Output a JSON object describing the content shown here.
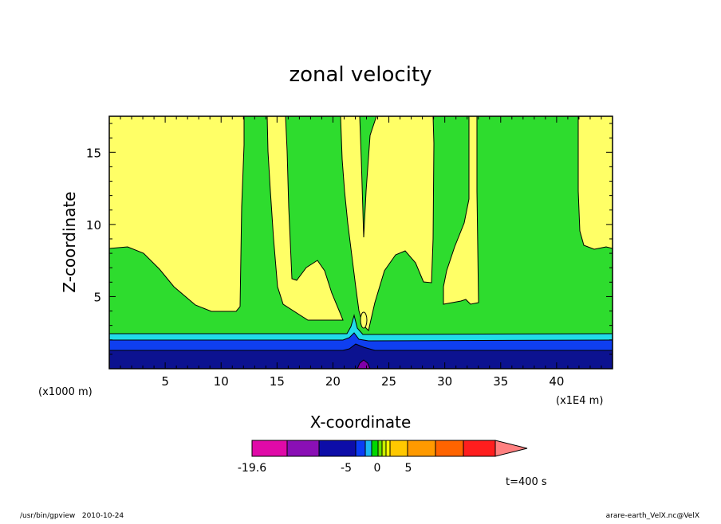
{
  "chart_data": {
    "type": "contour",
    "title": "zonal velocity",
    "xlabel": "X-coordinate",
    "ylabel": "Z-coordinate",
    "x_units": "(x1000 m)",
    "x_scale_note": "(x1E4 m)",
    "x_range": [
      0,
      45
    ],
    "y_range": [
      0,
      17.5
    ],
    "x_ticks": [
      5,
      10,
      15,
      20,
      25,
      30,
      35,
      40
    ],
    "y_ticks": [
      5,
      10,
      15
    ],
    "time_label": "t=400 s",
    "colorbar": {
      "labels": [
        "-19.6",
        "-5",
        "0",
        "5"
      ],
      "colors": [
        "#e00aa8",
        "#8a0fb5",
        "#0d0da8",
        "#0a3cf5",
        "#1ab4f5",
        "#00d800",
        "#66e000",
        "#c8f000",
        "#ffff00",
        "#ffc800",
        "#ff9a00",
        "#ff6400",
        "#ff1e1e",
        "#ff8080"
      ]
    },
    "colors": {
      "yellow": "#ffff66",
      "green": "#2edc2e",
      "cyan": "#21dbe8",
      "blue": "#0f3ff0",
      "navy": "#0c1290",
      "purple": "#8000a8"
    }
  },
  "footer": {
    "left": "/usr/bin/gpview   2010-10-24",
    "right": "arare-earth_VelX.nc@VelX"
  }
}
